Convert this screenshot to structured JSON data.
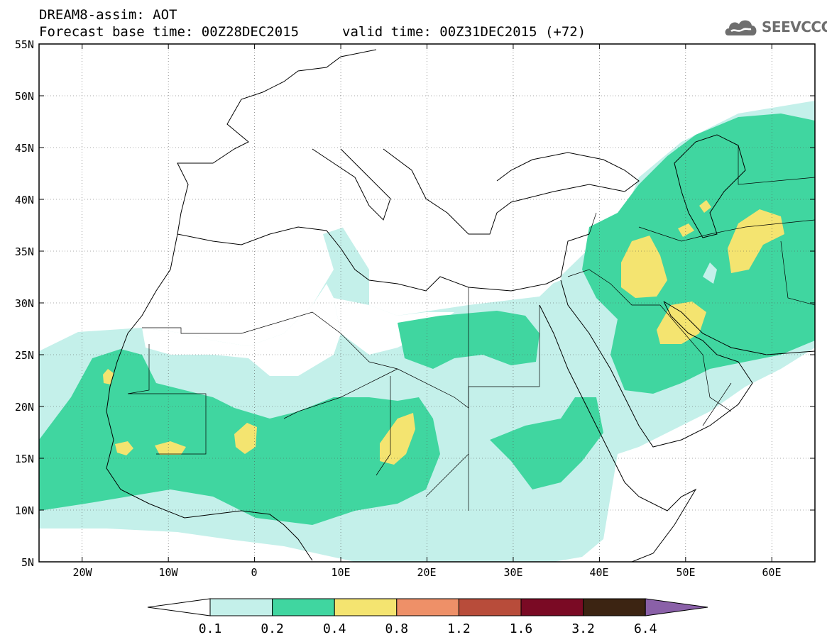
{
  "header": {
    "line1": "DREAM8-assim: AOT",
    "line2": "Forecast base time: 00Z28DEC2015",
    "valid": "valid time: 00Z31DEC2015 (+72)"
  },
  "logo": {
    "text": "SEEVCCC",
    "icon": "cloud-icon"
  },
  "map": {
    "lat_labels": [
      "55N",
      "50N",
      "45N",
      "40N",
      "35N",
      "30N",
      "25N",
      "20N",
      "15N",
      "10N",
      "5N"
    ],
    "lon_labels": [
      "20W",
      "10W",
      "0",
      "10E",
      "20E",
      "30E",
      "40E",
      "50E",
      "60E"
    ],
    "lat_range": [
      5,
      55
    ],
    "lon_range": [
      -25,
      65
    ]
  },
  "legend": {
    "labels": [
      "0.1",
      "0.2",
      "0.4",
      "0.8",
      "1.2",
      "1.6",
      "3.2",
      "6.4"
    ],
    "colors": [
      "#ffffff",
      "#c4f0ea",
      "#40d6a0",
      "#f4e470",
      "#ee9068",
      "#b84c3a",
      "#7a0a24",
      "#3c2412",
      "#8a60a8"
    ]
  }
}
